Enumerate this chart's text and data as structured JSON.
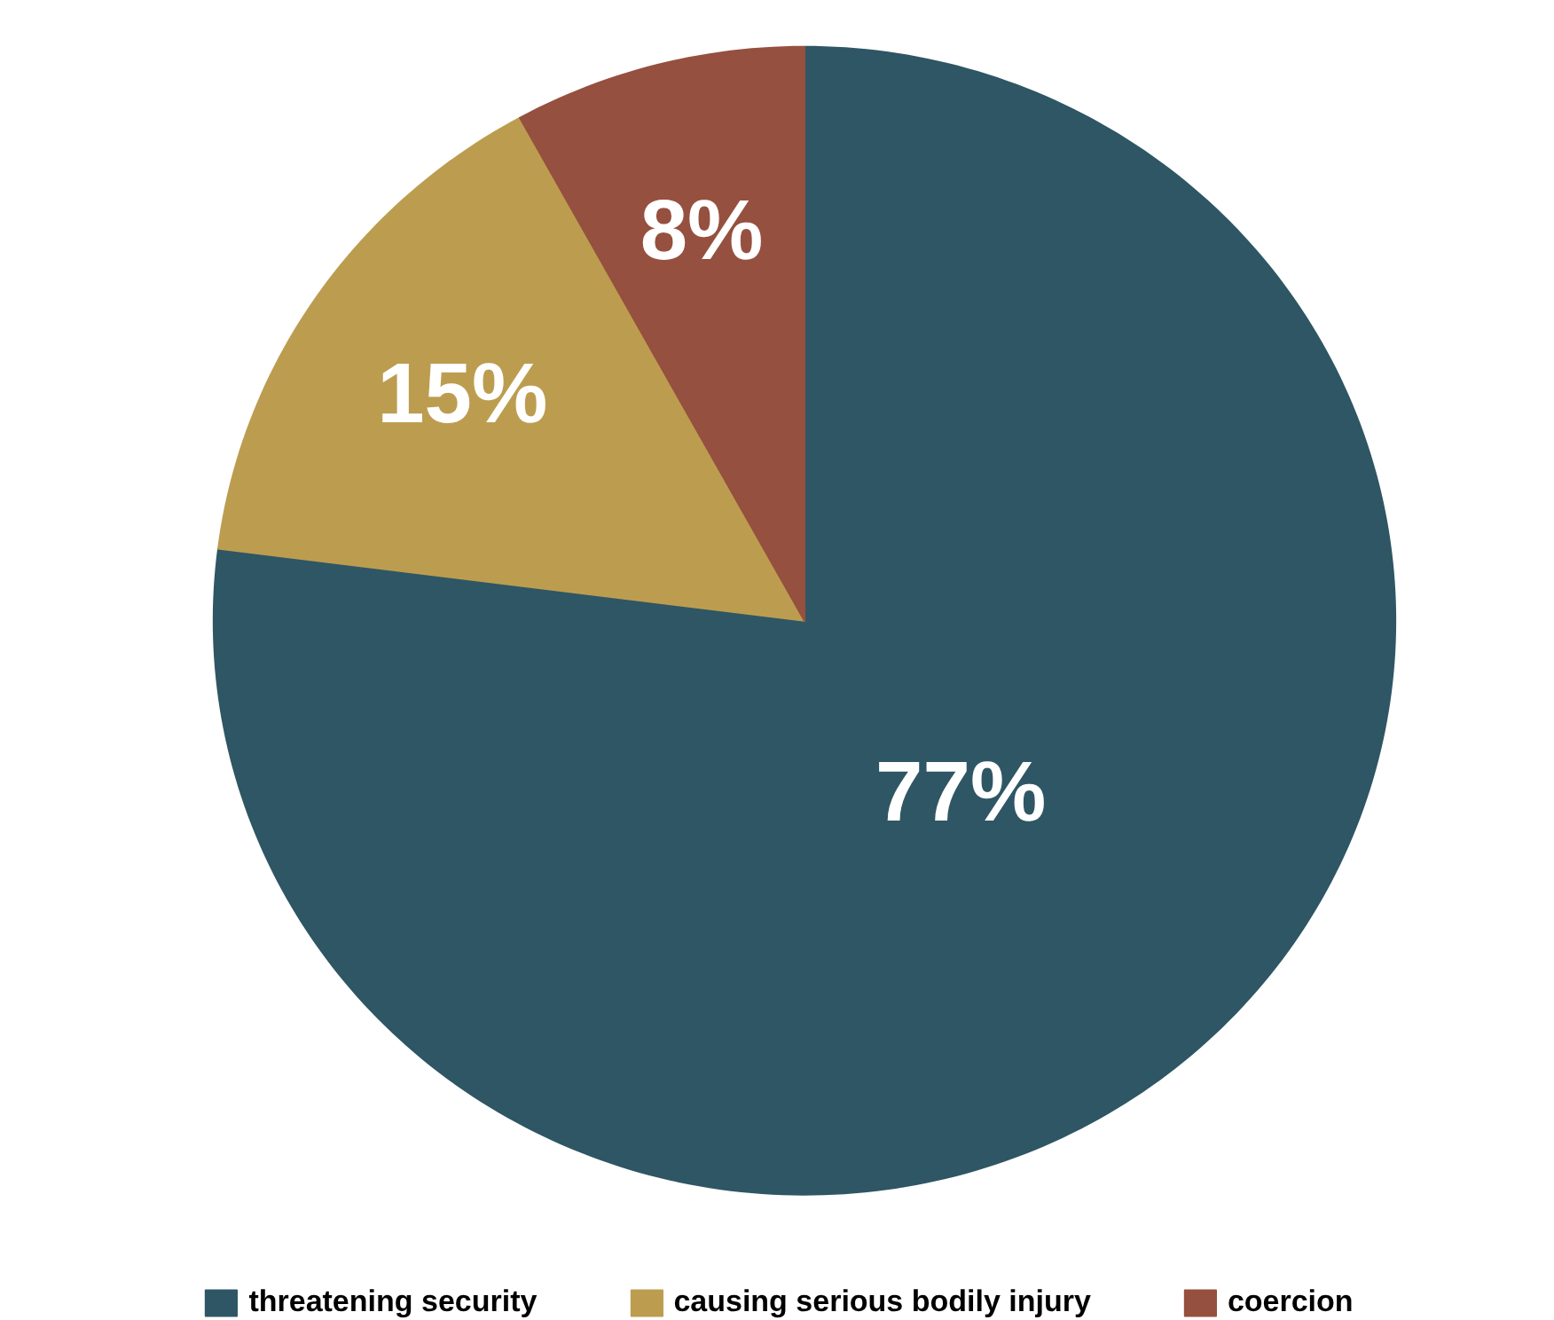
{
  "chart_data": {
    "type": "pie",
    "categories": [
      "threatening security",
      "causing serious bodily injury",
      "coercion"
    ],
    "values": [
      77,
      15,
      8
    ],
    "colors": [
      "#2f5664",
      "#bc9d50",
      "#96503f"
    ],
    "value_labels": [
      "77%",
      "15%",
      "8%"
    ],
    "legend": "bottom"
  }
}
